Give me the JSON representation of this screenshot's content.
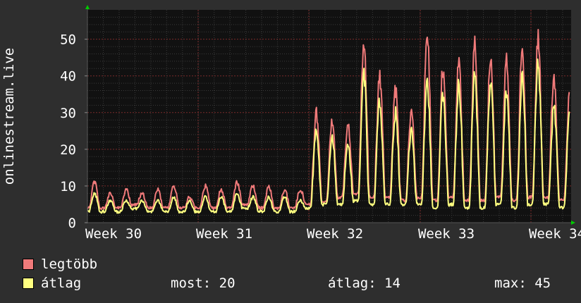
{
  "chart_data": {
    "type": "line",
    "ylabel": "onlinestream.live",
    "ylim": [
      0,
      58
    ],
    "yticks": [
      0,
      10,
      20,
      30,
      40,
      50
    ],
    "xticks": [
      "Week 30",
      "Week 31",
      "Week 32",
      "Week 33",
      "Week 34"
    ],
    "grid": true,
    "colors": {
      "legtobb": "#f07a7a",
      "atlag": "#ffff80"
    },
    "series": [
      {
        "name": "legtöbb",
        "color": "#f07a7a",
        "week_peaks": [
          [
            11,
            8,
            9,
            8,
            9,
            10,
            7
          ],
          [
            10,
            9,
            11,
            10,
            10,
            9,
            9
          ],
          [
            30,
            28,
            26,
            50,
            40,
            36,
            30
          ],
          [
            52,
            42,
            45,
            48,
            46,
            44,
            47
          ],
          [
            50,
            40,
            35,
            25
          ]
        ],
        "night_lows": [
          4,
          4,
          4,
          5,
          4,
          4,
          4,
          4,
          4,
          4,
          5,
          4,
          4,
          4,
          5,
          6,
          7,
          8,
          7,
          7,
          6,
          7,
          6,
          7,
          6,
          6,
          7,
          6,
          7,
          7,
          6,
          7,
          8
        ]
      },
      {
        "name": "átlag",
        "color": "#ffff80",
        "week_peaks": [
          [
            8,
            6,
            6,
            6,
            6,
            7,
            6
          ],
          [
            7,
            7,
            8,
            7,
            7,
            7,
            6
          ],
          [
            25,
            23,
            21,
            41,
            33,
            30,
            25
          ],
          [
            38,
            35,
            38,
            40,
            38,
            36,
            40
          ],
          [
            43,
            32,
            29,
            19
          ]
        ],
        "night_lows": [
          3,
          3,
          3,
          4,
          3,
          3,
          3,
          3,
          3,
          3,
          4,
          3,
          3,
          3,
          4,
          5,
          5,
          6,
          5,
          5,
          5,
          5,
          4,
          5,
          4,
          4,
          5,
          4,
          5,
          5,
          4,
          5,
          6
        ]
      }
    ],
    "summary": {
      "current": 20,
      "average": 14,
      "max": 45
    }
  },
  "legend": {
    "max_label": "legtöbb",
    "avg_label": "átlag",
    "now_text": "most: 20",
    "avg_text": "átlag: 14",
    "max_text": "max: 45"
  }
}
